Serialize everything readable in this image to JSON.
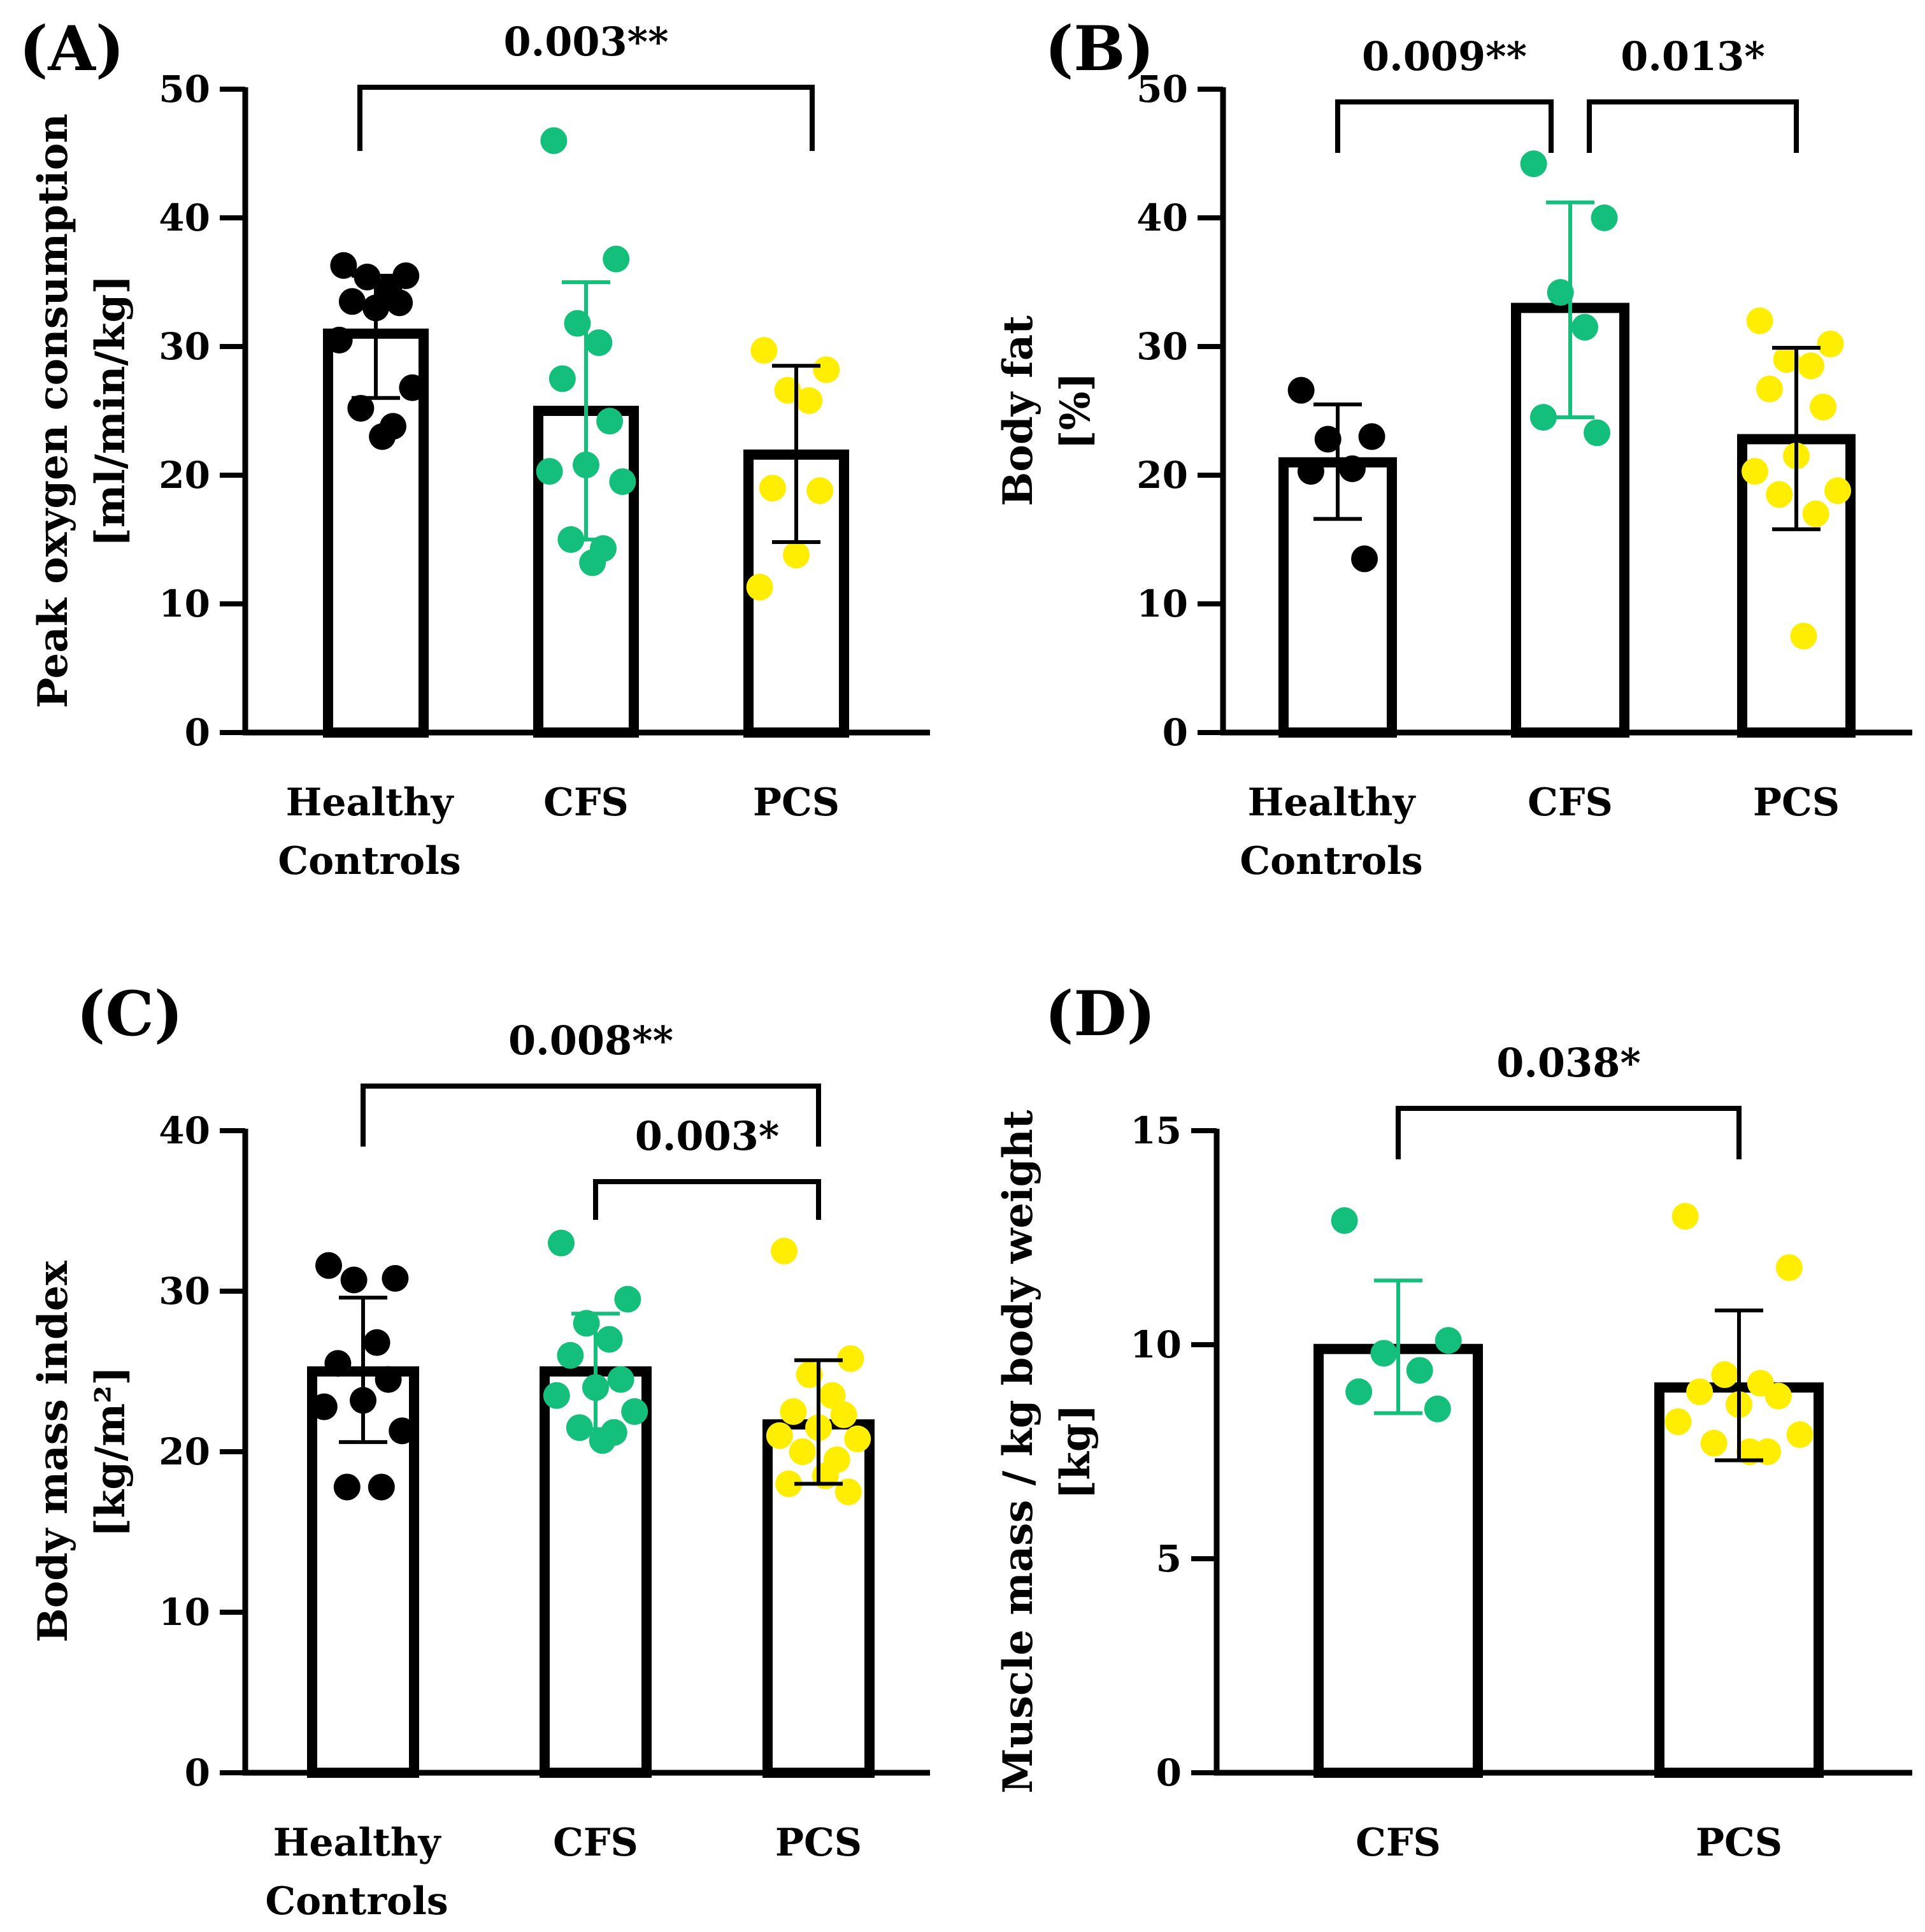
{
  "colors": {
    "healthy": "#000000",
    "cfs": "#13bf7b",
    "pcs": "#ffee00",
    "axis": "#000000"
  },
  "chart_data": [
    {
      "panel": "(A)",
      "type": "bar",
      "ylabel": [
        "Peak oxygen consumption",
        "[ml/min/kg]"
      ],
      "ylim": [
        0,
        50
      ],
      "yticks": [
        0,
        10,
        20,
        30,
        40,
        50
      ],
      "categories": [
        {
          "lines": [
            "Healthy",
            "Controls"
          ],
          "mean": 31,
          "sd_low": 26,
          "sd_high": 35.5,
          "color": "healthy",
          "points": [
            36.3,
            35.5,
            35.4,
            34.5,
            33.5,
            33.4,
            33.0,
            30.5,
            26.8,
            25.2,
            23.8,
            23.0
          ]
        },
        {
          "lines": [
            "CFS"
          ],
          "mean": 25,
          "sd_low": 15,
          "sd_high": 35,
          "color": "cfs",
          "points": [
            46,
            36.8,
            31.8,
            30.3,
            27.5,
            24.2,
            20.8,
            20.3,
            19.5,
            15.0,
            14.3,
            13.2
          ]
        },
        {
          "lines": [
            "PCS"
          ],
          "mean": 21.6,
          "sd_low": 14.8,
          "sd_high": 28.5,
          "color": "pcs",
          "points": [
            29.7,
            28.2,
            26.6,
            25.8,
            19.0,
            18.8,
            13.8,
            11.3
          ]
        }
      ],
      "comparisons": [
        {
          "from": 0,
          "to": 2,
          "label": "0.003**"
        }
      ]
    },
    {
      "panel": "(B)",
      "type": "bar",
      "ylabel": [
        "Body fat",
        "[%]"
      ],
      "ylim": [
        0,
        50
      ],
      "yticks": [
        0,
        10,
        20,
        30,
        40,
        50
      ],
      "categories": [
        {
          "lines": [
            "Healthy",
            "Controls"
          ],
          "mean": 21,
          "sd_low": 16.6,
          "sd_high": 25.5,
          "color": "healthy",
          "points": [
            26.6,
            23.0,
            22.8,
            20.5,
            20.3,
            13.5
          ]
        },
        {
          "lines": [
            "CFS"
          ],
          "mean": 33,
          "sd_low": 24.5,
          "sd_high": 41.2,
          "color": "cfs",
          "points": [
            44.2,
            40.0,
            34.2,
            31.5,
            24.5,
            23.3
          ]
        },
        {
          "lines": [
            "PCS"
          ],
          "mean": 22.8,
          "sd_low": 15.8,
          "sd_high": 29.9,
          "color": "pcs",
          "points": [
            32.0,
            30.2,
            29.0,
            28.5,
            26.7,
            25.3,
            21.5,
            20.3,
            18.8,
            18.5,
            17.0,
            7.5
          ]
        }
      ],
      "comparisons": [
        {
          "from": 0,
          "to": 1,
          "label": "0.009**"
        },
        {
          "from": 1,
          "to": 2,
          "label": "0.013*"
        }
      ]
    },
    {
      "panel": "(C)",
      "type": "bar",
      "ylabel": [
        "Body mass index",
        "[kg/m²]"
      ],
      "ylim": [
        0,
        40
      ],
      "yticks": [
        0,
        10,
        20,
        30,
        40
      ],
      "categories": [
        {
          "lines": [
            "Healthy",
            "Controls"
          ],
          "mean": 25,
          "sd_low": 20.6,
          "sd_high": 29.6,
          "color": "healthy",
          "points": [
            31.6,
            30.8,
            30.7,
            26.8,
            25.5,
            24.5,
            23.2,
            22.8,
            21.3,
            17.8,
            17.8
          ]
        },
        {
          "lines": [
            "CFS"
          ],
          "mean": 25,
          "sd_low": 21.4,
          "sd_high": 28.6,
          "color": "cfs",
          "points": [
            33.0,
            29.5,
            28.0,
            27.0,
            26.0,
            24.5,
            24.0,
            23.5,
            22.5,
            21.5,
            21.2,
            20.7
          ]
        },
        {
          "lines": [
            "PCS"
          ],
          "mean": 21.7,
          "sd_low": 18.0,
          "sd_high": 25.7,
          "color": "pcs",
          "points": [
            32.5,
            25.8,
            24.8,
            23.5,
            22.5,
            22.3,
            21.5,
            21.0,
            20.8,
            20.0,
            19.5,
            18.5,
            18.0,
            17.5
          ]
        }
      ],
      "comparisons": [
        {
          "from": 0,
          "to": 2,
          "label": "0.008**"
        },
        {
          "from": 1,
          "to": 2,
          "label": "0.003*"
        }
      ]
    },
    {
      "panel": "(D)",
      "type": "bar",
      "ylabel": [
        "Muscle mass / kg body weight",
        "[kg]"
      ],
      "ylim": [
        0,
        15
      ],
      "yticks": [
        0,
        5,
        10,
        15
      ],
      "categories": [
        {
          "lines": [
            "CFS"
          ],
          "mean": 9.9,
          "sd_low": 8.4,
          "sd_high": 11.5,
          "color": "cfs",
          "points": [
            12.9,
            10.1,
            9.8,
            9.4,
            8.9,
            8.5
          ]
        },
        {
          "lines": [
            "PCS"
          ],
          "mean": 9.0,
          "sd_low": 7.3,
          "sd_high": 10.8,
          "color": "pcs",
          "points": [
            13.0,
            11.8,
            9.3,
            9.1,
            8.9,
            8.8,
            8.6,
            8.2,
            7.9,
            7.7,
            7.5,
            7.5
          ]
        }
      ],
      "comparisons": [
        {
          "from": 0,
          "to": 1,
          "label": "0.038*"
        }
      ]
    }
  ]
}
